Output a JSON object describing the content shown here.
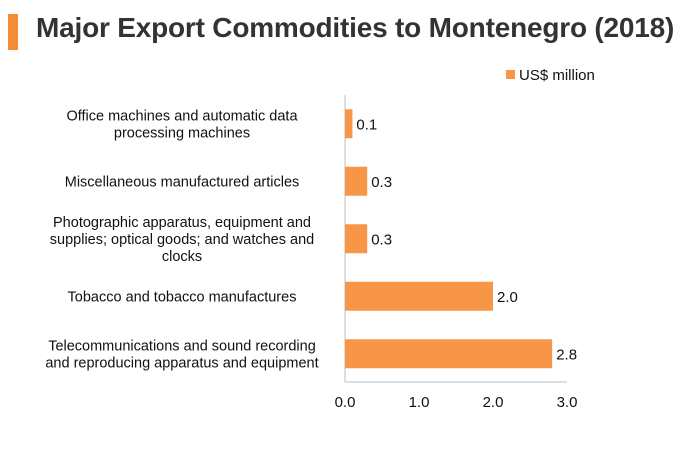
{
  "chart_data": {
    "type": "bar",
    "orientation": "horizontal",
    "title": "Major Export Commodities to Montenegro (2018)",
    "categories": [
      [
        "Office machines and automatic data",
        "processing machines"
      ],
      [
        "Miscellaneous manufactured articles"
      ],
      [
        "Photographic apparatus, equipment and",
        "supplies; optical goods; and watches and",
        "clocks"
      ],
      [
        "Tobacco and tobacco manufactures"
      ],
      [
        "Telecommunications and sound recording",
        "and reproducing apparatus and equipment"
      ]
    ],
    "series": [
      {
        "name": "US$ million",
        "values": [
          0.1,
          0.3,
          0.3,
          2.0,
          2.8
        ],
        "value_labels": [
          "0.1",
          "0.3",
          "0.3",
          "2.0",
          "2.8"
        ]
      }
    ],
    "xlim": [
      0,
      3
    ],
    "xticks": [
      0,
      1,
      2,
      3
    ],
    "xtick_labels": [
      "0.0",
      "1.0",
      "2.0",
      "3.0"
    ],
    "legend_position": "top-right",
    "bar_color": "#f79646",
    "accent_color": "#f28c38",
    "grid": false
  }
}
